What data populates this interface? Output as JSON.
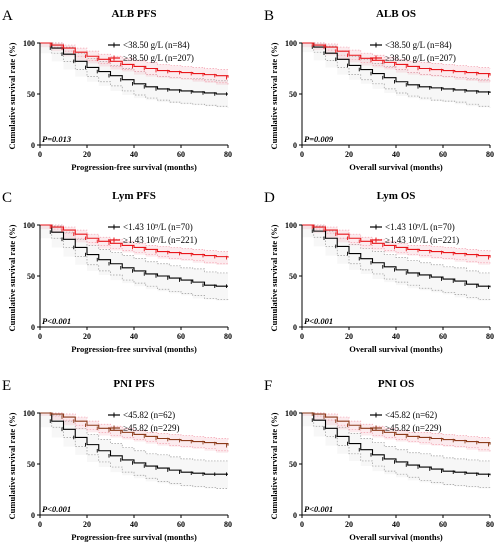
{
  "chart_data": [
    {
      "type": "line",
      "panel": "A",
      "title": "ALB PFS",
      "xlabel": "Progression-free survival (months)",
      "ylabel": "Cumulative survival rate (%)",
      "xlim": [
        0,
        80
      ],
      "ylim": [
        0,
        100
      ],
      "xticks": [
        "0",
        "20",
        "40",
        "60",
        "80"
      ],
      "yticks": [
        "0",
        "50",
        "100"
      ],
      "pvalue": "P=0.013",
      "legend_position": "top-right",
      "series": [
        {
          "name": "<38.50 g/L (n=84)",
          "color": "#000000",
          "band_color": "#9a9a9a",
          "x": [
            0,
            5,
            10,
            15,
            20,
            25,
            30,
            35,
            40,
            45,
            50,
            55,
            60,
            65,
            70,
            75,
            80
          ],
          "y": [
            100,
            95,
            89,
            82,
            76,
            72,
            68,
            64,
            60,
            57,
            55,
            54,
            53,
            52,
            51,
            50,
            50
          ],
          "lower": [
            100,
            90,
            82,
            74,
            67,
            62,
            58,
            53,
            49,
            46,
            44,
            42,
            41,
            40,
            39,
            38,
            37
          ],
          "upper": [
            100,
            100,
            96,
            90,
            85,
            82,
            78,
            75,
            72,
            69,
            67,
            66,
            65,
            65,
            64,
            63,
            63
          ]
        },
        {
          "name": "≥38.50 g/L (n=207)",
          "color": "#e8161b",
          "band_color": "#f3a3b1",
          "x": [
            0,
            5,
            10,
            15,
            20,
            25,
            30,
            35,
            40,
            45,
            50,
            55,
            60,
            65,
            70,
            75,
            80
          ],
          "y": [
            100,
            98,
            95,
            91,
            87,
            84,
            82,
            79,
            77,
            75,
            73,
            72,
            71,
            70,
            69,
            68,
            66
          ],
          "lower": [
            100,
            96,
            92,
            87,
            83,
            80,
            77,
            74,
            72,
            69,
            67,
            66,
            65,
            64,
            62,
            61,
            59
          ],
          "upper": [
            100,
            100,
            98,
            95,
            92,
            89,
            87,
            85,
            83,
            81,
            79,
            78,
            77,
            76,
            75,
            74,
            73
          ]
        }
      ]
    },
    {
      "type": "line",
      "panel": "B",
      "title": "ALB OS",
      "xlabel": "Overall survival (months)",
      "ylabel": "Cumulative survival rate (%)",
      "xlim": [
        0,
        80
      ],
      "ylim": [
        0,
        100
      ],
      "xticks": [
        "0",
        "20",
        "40",
        "60",
        "80"
      ],
      "yticks": [
        "0",
        "50",
        "100"
      ],
      "pvalue": "P=0.009",
      "legend_position": "top-right",
      "series": [
        {
          "name": "<38.50 g/L (n=84)",
          "color": "#000000",
          "band_color": "#9a9a9a",
          "x": [
            0,
            5,
            10,
            15,
            20,
            25,
            30,
            35,
            40,
            45,
            50,
            55,
            60,
            65,
            70,
            75,
            80
          ],
          "y": [
            100,
            96,
            90,
            84,
            78,
            74,
            70,
            66,
            62,
            59,
            57,
            56,
            55,
            54,
            53,
            52,
            51
          ],
          "lower": [
            100,
            91,
            83,
            76,
            69,
            64,
            60,
            55,
            51,
            48,
            46,
            44,
            43,
            42,
            40,
            38,
            37
          ],
          "upper": [
            100,
            100,
            97,
            92,
            87,
            84,
            80,
            77,
            74,
            71,
            69,
            68,
            67,
            66,
            65,
            64,
            64
          ]
        },
        {
          "name": "≥38.50 g/L (n=207)",
          "color": "#e8161b",
          "band_color": "#f3a3b1",
          "x": [
            0,
            5,
            10,
            15,
            20,
            25,
            30,
            35,
            40,
            45,
            50,
            55,
            60,
            65,
            70,
            75,
            80
          ],
          "y": [
            100,
            98,
            96,
            92,
            88,
            85,
            83,
            81,
            79,
            77,
            75,
            74,
            73,
            72,
            71,
            70,
            68
          ],
          "lower": [
            100,
            96,
            93,
            88,
            84,
            81,
            78,
            76,
            74,
            71,
            69,
            68,
            67,
            66,
            64,
            63,
            61
          ],
          "upper": [
            100,
            100,
            99,
            96,
            93,
            90,
            88,
            86,
            84,
            82,
            81,
            80,
            79,
            78,
            77,
            76,
            75
          ]
        }
      ]
    },
    {
      "type": "line",
      "panel": "C",
      "title": "Lym PFS",
      "xlabel": "Progression-free survival (months)",
      "ylabel": "Cumulative survival rate (%)",
      "xlim": [
        0,
        80
      ],
      "ylim": [
        0,
        100
      ],
      "xticks": [
        "0",
        "20",
        "40",
        "60",
        "80"
      ],
      "yticks": [
        "0",
        "50",
        "100"
      ],
      "pvalue": "P<0.001",
      "legend_position": "top-right",
      "series": [
        {
          "name": "<1.43 10⁹/L (n=70)",
          "color": "#000000",
          "band_color": "#9a9a9a",
          "x": [
            0,
            5,
            10,
            15,
            20,
            25,
            30,
            35,
            40,
            45,
            50,
            55,
            60,
            65,
            70,
            75,
            80
          ],
          "y": [
            100,
            93,
            86,
            78,
            71,
            66,
            62,
            58,
            55,
            52,
            50,
            48,
            46,
            44,
            41,
            40,
            40
          ],
          "lower": [
            100,
            87,
            78,
            69,
            61,
            55,
            51,
            46,
            43,
            40,
            37,
            35,
            33,
            31,
            28,
            27,
            26
          ],
          "upper": [
            100,
            99,
            93,
            86,
            80,
            76,
            73,
            70,
            67,
            64,
            62,
            60,
            58,
            57,
            54,
            53,
            53
          ]
        },
        {
          "name": "≥1.43 10⁹/L (n=221)",
          "color": "#e8161b",
          "band_color": "#f3a3b1",
          "x": [
            0,
            5,
            10,
            15,
            20,
            25,
            30,
            35,
            40,
            45,
            50,
            55,
            60,
            65,
            70,
            75,
            80
          ],
          "y": [
            100,
            98,
            95,
            91,
            87,
            84,
            82,
            80,
            78,
            76,
            74,
            73,
            72,
            71,
            70,
            69,
            68
          ],
          "lower": [
            100,
            96,
            92,
            87,
            83,
            80,
            77,
            75,
            73,
            71,
            69,
            67,
            66,
            65,
            63,
            62,
            61
          ],
          "upper": [
            100,
            100,
            98,
            95,
            91,
            88,
            86,
            84,
            82,
            80,
            79,
            78,
            77,
            76,
            75,
            74,
            74
          ]
        }
      ]
    },
    {
      "type": "line",
      "panel": "D",
      "title": "Lym OS",
      "xlabel": "Overall survival (months)",
      "ylabel": "Cumulative survival rate (%)",
      "xlim": [
        0,
        80
      ],
      "ylim": [
        0,
        100
      ],
      "xticks": [
        "0",
        "20",
        "40",
        "60",
        "80"
      ],
      "yticks": [
        "0",
        "50",
        "100"
      ],
      "pvalue": "P<0.001",
      "legend_position": "top-right",
      "series": [
        {
          "name": "<1.43 10⁹/L (n=70)",
          "color": "#000000",
          "band_color": "#9a9a9a",
          "x": [
            0,
            5,
            10,
            15,
            20,
            25,
            30,
            35,
            40,
            45,
            50,
            55,
            60,
            65,
            70,
            75,
            80
          ],
          "y": [
            100,
            94,
            87,
            79,
            72,
            67,
            63,
            59,
            56,
            53,
            51,
            49,
            47,
            45,
            42,
            40,
            39
          ],
          "lower": [
            100,
            88,
            79,
            70,
            62,
            56,
            52,
            47,
            44,
            41,
            38,
            36,
            34,
            32,
            29,
            27,
            26
          ],
          "upper": [
            100,
            99,
            94,
            87,
            81,
            77,
            74,
            71,
            68,
            65,
            63,
            61,
            59,
            58,
            55,
            53,
            52
          ]
        },
        {
          "name": "≥1.43 10⁹/L (n=221)",
          "color": "#e8161b",
          "band_color": "#f3a3b1",
          "x": [
            0,
            5,
            10,
            15,
            20,
            25,
            30,
            35,
            40,
            45,
            50,
            55,
            60,
            65,
            70,
            75,
            80
          ],
          "y": [
            100,
            98,
            95,
            91,
            87,
            84,
            82,
            80,
            78,
            76,
            75,
            74,
            73,
            72,
            71,
            70,
            68
          ],
          "lower": [
            100,
            96,
            92,
            87,
            83,
            80,
            77,
            75,
            73,
            71,
            70,
            68,
            67,
            66,
            64,
            63,
            61
          ],
          "upper": [
            100,
            100,
            98,
            95,
            91,
            88,
            86,
            84,
            82,
            80,
            80,
            79,
            78,
            77,
            76,
            75,
            74
          ]
        }
      ]
    },
    {
      "type": "line",
      "panel": "E",
      "title": "PNI PFS",
      "xlabel": "Progression-free survival (months)",
      "ylabel": "Cumulative survival rate (%)",
      "xlim": [
        0,
        80
      ],
      "ylim": [
        0,
        100
      ],
      "xticks": [
        "0",
        "20",
        "40",
        "60",
        "80"
      ],
      "yticks": [
        "0",
        "50",
        "100"
      ],
      "pvalue": "P<0.001",
      "legend_position": "top-right",
      "series": [
        {
          "name": "<45.82 (n=62)",
          "color": "#000000",
          "band_color": "#9a9a9a",
          "x": [
            0,
            5,
            10,
            15,
            20,
            25,
            30,
            35,
            40,
            45,
            50,
            55,
            60,
            65,
            70,
            75,
            80
          ],
          "y": [
            100,
            92,
            84,
            76,
            69,
            63,
            58,
            54,
            51,
            48,
            46,
            44,
            42,
            41,
            40,
            40,
            40
          ],
          "lower": [
            100,
            86,
            76,
            67,
            59,
            52,
            47,
            42,
            39,
            36,
            33,
            31,
            29,
            28,
            27,
            26,
            26
          ],
          "upper": [
            100,
            98,
            92,
            85,
            79,
            74,
            70,
            66,
            63,
            60,
            59,
            57,
            55,
            54,
            53,
            53,
            53
          ]
        },
        {
          "name": "≥45.82 (n=229)",
          "color": "#8b3a1a",
          "band_color": "#f3a3b1",
          "x": [
            0,
            5,
            10,
            15,
            20,
            25,
            30,
            35,
            40,
            45,
            50,
            55,
            60,
            65,
            70,
            75,
            80
          ],
          "y": [
            100,
            99,
            96,
            92,
            88,
            85,
            83,
            81,
            79,
            77,
            75,
            74,
            73,
            72,
            71,
            70,
            68
          ],
          "lower": [
            100,
            97,
            93,
            88,
            84,
            81,
            78,
            76,
            74,
            72,
            70,
            68,
            67,
            66,
            65,
            63,
            61
          ],
          "upper": [
            100,
            100,
            99,
            96,
            92,
            89,
            87,
            85,
            83,
            81,
            80,
            79,
            78,
            77,
            76,
            75,
            74
          ]
        }
      ]
    },
    {
      "type": "line",
      "panel": "F",
      "title": "PNI OS",
      "xlabel": "Overall survival (months)",
      "ylabel": "Cumulative survival rate (%)",
      "xlim": [
        0,
        80
      ],
      "ylim": [
        0,
        100
      ],
      "xticks": [
        "0",
        "20",
        "40",
        "60",
        "80"
      ],
      "yticks": [
        "0",
        "50",
        "100"
      ],
      "pvalue": "P<0.001",
      "legend_position": "top-right",
      "series": [
        {
          "name": "<45.82 (n=62)",
          "color": "#000000",
          "band_color": "#9a9a9a",
          "x": [
            0,
            5,
            10,
            15,
            20,
            25,
            30,
            35,
            40,
            45,
            50,
            55,
            60,
            65,
            70,
            75,
            80
          ],
          "y": [
            100,
            93,
            85,
            77,
            70,
            64,
            59,
            55,
            52,
            49,
            47,
            45,
            43,
            42,
            41,
            40,
            39
          ],
          "lower": [
            100,
            87,
            77,
            68,
            60,
            53,
            48,
            43,
            40,
            37,
            34,
            32,
            30,
            29,
            28,
            27,
            26
          ],
          "upper": [
            100,
            99,
            93,
            86,
            80,
            75,
            71,
            67,
            64,
            61,
            60,
            58,
            56,
            55,
            54,
            53,
            52
          ]
        },
        {
          "name": "≥45.82 (n=229)",
          "color": "#8b3a1a",
          "band_color": "#f3a3b1",
          "x": [
            0,
            5,
            10,
            15,
            20,
            25,
            30,
            35,
            40,
            45,
            50,
            55,
            60,
            65,
            70,
            75,
            80
          ],
          "y": [
            100,
            99,
            96,
            92,
            88,
            85,
            83,
            81,
            79,
            77,
            76,
            75,
            74,
            73,
            72,
            71,
            69
          ],
          "lower": [
            100,
            97,
            93,
            88,
            84,
            81,
            78,
            76,
            74,
            72,
            71,
            69,
            68,
            67,
            66,
            64,
            62
          ],
          "upper": [
            100,
            100,
            99,
            96,
            92,
            89,
            87,
            85,
            83,
            81,
            81,
            80,
            79,
            78,
            77,
            76,
            75
          ]
        }
      ]
    }
  ]
}
